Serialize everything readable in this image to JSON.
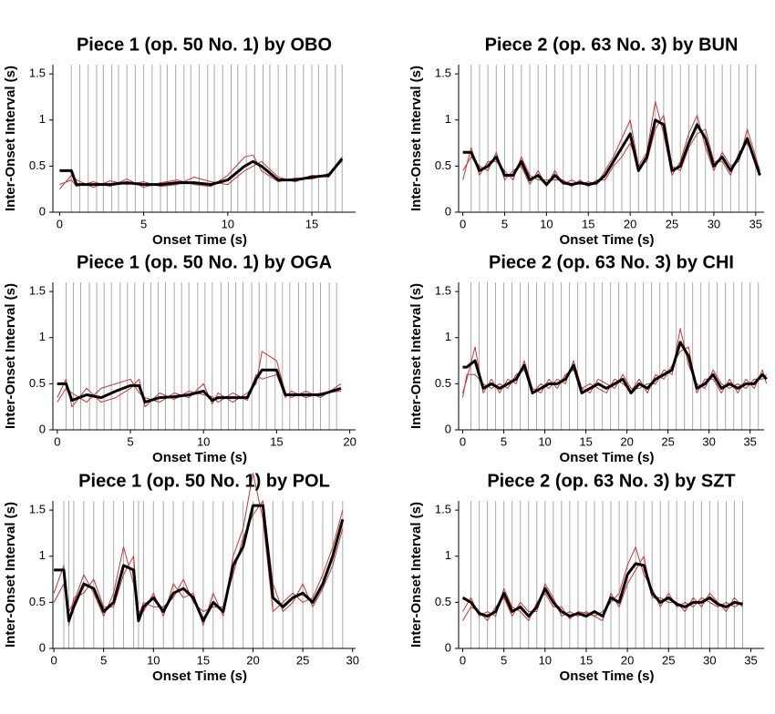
{
  "chart_data": [
    {
      "type": "line",
      "title": "Piece 1 (op. 50 No. 1) by OBO",
      "x_label": "Onset Time (s)",
      "y_label": "Inter-Onset Interval (s)",
      "xlim": [
        -0.4,
        17.6
      ],
      "ylim": [
        0,
        1.6
      ],
      "xticks": [
        0,
        5,
        10,
        15
      ],
      "yticks": [
        0,
        0.5,
        1,
        1.5
      ],
      "onset_color": "#aaaaaa",
      "onsets": [
        0.7,
        1.2,
        1.7,
        2.2,
        2.6,
        3.1,
        3.5,
        4,
        4.5,
        5,
        5.5,
        6,
        6.4,
        6.9,
        7.4,
        7.8,
        8.3,
        8.8,
        9.2,
        9.7,
        10.2,
        10.6,
        11.1,
        11.6,
        12.1,
        12.5,
        13,
        13.5,
        14,
        14.5,
        15,
        15.4,
        15.9,
        16.4,
        16.8
      ],
      "x": [
        0,
        0.7,
        1,
        2,
        3,
        4,
        5,
        6,
        7,
        8,
        9,
        10,
        11,
        11.5,
        12,
        13,
        14,
        15,
        16,
        16.8
      ],
      "series": [
        {
          "color": "#cc3333",
          "values": [
            0.3,
            0.35,
            0.28,
            0.33,
            0.28,
            0.36,
            0.27,
            0.32,
            0.35,
            0.3,
            0.28,
            0.4,
            0.6,
            0.62,
            0.45,
            0.33,
            0.37,
            0.36,
            0.42,
            0.55
          ]
        },
        {
          "color": "#cc3333",
          "values": [
            0.25,
            0.4,
            0.35,
            0.27,
            0.34,
            0.3,
            0.33,
            0.28,
            0.3,
            0.38,
            0.33,
            0.3,
            0.45,
            0.5,
            0.55,
            0.38,
            0.33,
            0.4,
            0.38,
            0.6
          ]
        },
        {
          "color": "#000000",
          "values": [
            0.45,
            0.45,
            0.3,
            0.3,
            0.3,
            0.32,
            0.3,
            0.3,
            0.32,
            0.32,
            0.3,
            0.35,
            0.5,
            0.55,
            0.5,
            0.35,
            0.35,
            0.38,
            0.4,
            0.58
          ]
        }
      ]
    },
    {
      "type": "line",
      "title": "Piece 2 (op. 63 No. 3) by BUN",
      "x_label": "Onset Time (s)",
      "y_label": "Inter-Onset Interval (s)",
      "xlim": [
        -0.5,
        36
      ],
      "ylim": [
        0,
        1.6
      ],
      "xticks": [
        0,
        5,
        10,
        15,
        20,
        25,
        30,
        35
      ],
      "yticks": [
        0,
        0.5,
        1,
        1.5
      ],
      "onset_color": "#aaaaaa",
      "onsets": [
        1,
        2,
        3,
        4,
        5,
        6,
        7,
        8,
        9,
        10,
        11,
        12,
        13,
        14,
        15,
        16,
        17,
        18,
        19,
        20,
        21,
        22,
        23,
        24,
        25,
        26,
        27,
        28,
        29,
        30,
        31,
        32,
        33,
        34,
        35
      ],
      "x": [
        0,
        1,
        2,
        3,
        4,
        5,
        6,
        7,
        8,
        9,
        10,
        11,
        12,
        13,
        14,
        15,
        16,
        17,
        18,
        19,
        20,
        21,
        22,
        23,
        24,
        25,
        26,
        27,
        28,
        29,
        30,
        31,
        32,
        33,
        34,
        35.5
      ],
      "series": [
        {
          "color": "#cc3333",
          "values": [
            0.45,
            0.6,
            0.5,
            0.45,
            0.65,
            0.35,
            0.45,
            0.5,
            0.3,
            0.45,
            0.28,
            0.45,
            0.3,
            0.35,
            0.3,
            0.33,
            0.3,
            0.45,
            0.6,
            0.8,
            1.0,
            0.5,
            0.65,
            1.2,
            0.85,
            0.4,
            0.55,
            0.85,
            1.05,
            0.7,
            0.45,
            0.65,
            0.5,
            0.55,
            0.9,
            0.45
          ]
        },
        {
          "color": "#cc3333",
          "values": [
            0.35,
            0.7,
            0.4,
            0.55,
            0.55,
            0.45,
            0.35,
            0.6,
            0.4,
            0.35,
            0.35,
            0.35,
            0.35,
            0.28,
            0.35,
            0.28,
            0.35,
            0.35,
            0.5,
            0.6,
            0.75,
            0.5,
            0.55,
            0.9,
            1.05,
            0.5,
            0.45,
            0.7,
            0.85,
            0.9,
            0.55,
            0.55,
            0.4,
            0.65,
            0.75,
            0.45
          ]
        },
        {
          "color": "#000000",
          "values": [
            0.65,
            0.65,
            0.45,
            0.5,
            0.6,
            0.4,
            0.4,
            0.55,
            0.35,
            0.4,
            0.3,
            0.4,
            0.32,
            0.3,
            0.32,
            0.3,
            0.32,
            0.4,
            0.55,
            0.7,
            0.85,
            0.45,
            0.6,
            1.0,
            0.95,
            0.45,
            0.5,
            0.75,
            0.95,
            0.8,
            0.5,
            0.6,
            0.45,
            0.6,
            0.8,
            0.4
          ]
        }
      ]
    },
    {
      "type": "line",
      "title": "Piece 1 (op. 50 No. 1) by OGA",
      "x_label": "Onset Time (s)",
      "y_label": "Inter-Onset Interval (s)",
      "xlim": [
        -0.3,
        20.4
      ],
      "ylim": [
        0,
        1.6
      ],
      "xticks": [
        0,
        5,
        10,
        15,
        20
      ],
      "yticks": [
        0,
        0.5,
        1,
        1.5
      ],
      "onset_color": "#aaaaaa",
      "onsets": [
        0.6,
        1.1,
        1.6,
        2.2,
        2.7,
        3.2,
        3.7,
        4.3,
        4.8,
        5.3,
        5.9,
        6.4,
        6.9,
        7.4,
        8,
        8.5,
        9,
        9.6,
        10.1,
        10.6,
        11.2,
        11.7,
        12.2,
        12.7,
        13.3,
        13.8,
        14.3,
        14.9,
        15.4,
        15.9,
        16.5,
        17,
        17.5,
        18,
        18.6,
        19.1
      ],
      "x": [
        0,
        0.6,
        1,
        2,
        3,
        4,
        5,
        5.6,
        6,
        7,
        8,
        9,
        10,
        10.6,
        11,
        12,
        13,
        13.6,
        14,
        15,
        15.6,
        16,
        17,
        18,
        19.4
      ],
      "series": [
        {
          "color": "#cc3333",
          "values": [
            0.3,
            0.45,
            0.4,
            0.3,
            0.45,
            0.5,
            0.55,
            0.4,
            0.35,
            0.3,
            0.4,
            0.35,
            0.5,
            0.28,
            0.4,
            0.3,
            0.4,
            0.5,
            0.85,
            0.75,
            0.4,
            0.35,
            0.42,
            0.35,
            0.5
          ]
        },
        {
          "color": "#cc3333",
          "values": [
            0.35,
            0.55,
            0.25,
            0.45,
            0.3,
            0.35,
            0.45,
            0.55,
            0.25,
            0.4,
            0.33,
            0.42,
            0.38,
            0.36,
            0.3,
            0.4,
            0.32,
            0.6,
            0.55,
            0.6,
            0.35,
            0.42,
            0.35,
            0.4,
            0.42
          ]
        },
        {
          "color": "#000000",
          "values": [
            0.5,
            0.5,
            0.32,
            0.38,
            0.35,
            0.42,
            0.48,
            0.48,
            0.3,
            0.35,
            0.36,
            0.38,
            0.42,
            0.32,
            0.35,
            0.35,
            0.35,
            0.55,
            0.65,
            0.65,
            0.38,
            0.38,
            0.38,
            0.38,
            0.45
          ]
        }
      ]
    },
    {
      "type": "line",
      "title": "Piece 2 (op. 63 No. 3) by CHI",
      "x_label": "Onset Time (s)",
      "y_label": "Inter-Onset Interval (s)",
      "xlim": [
        -0.5,
        36.7
      ],
      "ylim": [
        0,
        1.6
      ],
      "xticks": [
        0,
        5,
        10,
        15,
        20,
        25,
        30,
        35
      ],
      "yticks": [
        0,
        0.5,
        1,
        1.5
      ],
      "onset_color": "#aaaaaa",
      "onsets": [
        1,
        2,
        3,
        4,
        5,
        6,
        7,
        8,
        9,
        10,
        11,
        12,
        13,
        14,
        15,
        16,
        17,
        18,
        19,
        20,
        21,
        22,
        23,
        24,
        25,
        26,
        27,
        28,
        29,
        30,
        31,
        32,
        33,
        34,
        35,
        36
      ],
      "x": [
        0,
        0.5,
        1.5,
        2.5,
        3.5,
        4.5,
        5.5,
        6.5,
        7.5,
        8.5,
        9.5,
        10.5,
        11.5,
        12.5,
        13.5,
        14.5,
        15.5,
        16.5,
        17.5,
        18.5,
        19.5,
        20.5,
        21.5,
        22.5,
        23.5,
        24.5,
        25.5,
        26.5,
        27.5,
        28.5,
        29.5,
        30.5,
        31.5,
        32.5,
        33.5,
        34.5,
        35.5,
        36.5,
        37
      ],
      "series": [
        {
          "color": "#cc3333",
          "values": [
            0.4,
            0.55,
            0.9,
            0.4,
            0.55,
            0.4,
            0.55,
            0.5,
            0.75,
            0.45,
            0.4,
            0.55,
            0.45,
            0.6,
            0.65,
            0.45,
            0.4,
            0.55,
            0.5,
            0.45,
            0.6,
            0.45,
            0.45,
            0.5,
            0.5,
            0.65,
            0.6,
            1.1,
            0.7,
            0.5,
            0.45,
            0.65,
            0.5,
            0.45,
            0.5,
            0.45,
            0.55,
            0.55,
            0.6
          ]
        },
        {
          "color": "#cc3333",
          "values": [
            0.35,
            0.6,
            0.6,
            0.5,
            0.45,
            0.5,
            0.45,
            0.6,
            0.65,
            0.4,
            0.5,
            0.45,
            0.55,
            0.5,
            0.75,
            0.45,
            0.5,
            0.45,
            0.4,
            0.55,
            0.5,
            0.42,
            0.55,
            0.4,
            0.6,
            0.55,
            0.7,
            0.85,
            0.9,
            0.4,
            0.55,
            0.55,
            0.4,
            0.55,
            0.4,
            0.55,
            0.45,
            0.65,
            0.5
          ]
        },
        {
          "color": "#000000",
          "values": [
            0.68,
            0.68,
            0.75,
            0.45,
            0.5,
            0.45,
            0.5,
            0.55,
            0.7,
            0.4,
            0.45,
            0.5,
            0.5,
            0.55,
            0.7,
            0.4,
            0.45,
            0.5,
            0.45,
            0.5,
            0.55,
            0.4,
            0.5,
            0.45,
            0.55,
            0.6,
            0.65,
            0.95,
            0.8,
            0.45,
            0.5,
            0.6,
            0.45,
            0.5,
            0.45,
            0.5,
            0.5,
            0.6,
            0.55
          ]
        }
      ]
    },
    {
      "type": "line",
      "title": "Piece 1 (op. 50 No. 1) by POL",
      "x_label": "Onset Time (s)",
      "y_label": "Inter-Onset Interval (s)",
      "xlim": [
        -0.1,
        30.3
      ],
      "ylim": [
        0,
        1.6
      ],
      "xticks": [
        0,
        5,
        10,
        15,
        20,
        25,
        30
      ],
      "yticks": [
        0,
        0.5,
        1,
        1.5
      ],
      "onset_color": "#aaaaaa",
      "onsets": [
        1,
        1.5,
        2,
        3,
        4,
        5,
        6,
        7,
        8,
        8.5,
        9,
        10,
        11,
        12,
        13,
        14,
        15,
        16,
        17,
        18,
        19,
        20,
        21,
        22,
        23,
        24,
        25,
        26,
        27,
        28,
        29
      ],
      "x": [
        0,
        1,
        1.5,
        2,
        3,
        4,
        5,
        6,
        7,
        8,
        8.5,
        9,
        10,
        11,
        12,
        13,
        14,
        15,
        16,
        17,
        18,
        19,
        20,
        21,
        22,
        23,
        24,
        25,
        26,
        27,
        28,
        29
      ],
      "series": [
        {
          "color": "#cc3333",
          "values": [
            0.5,
            0.7,
            0.4,
            0.5,
            0.8,
            0.6,
            0.35,
            0.6,
            1.1,
            0.7,
            0.4,
            0.4,
            0.6,
            0.35,
            0.7,
            0.55,
            0.6,
            0.25,
            0.6,
            0.35,
            1.0,
            1.3,
            1.9,
            1.4,
            0.4,
            0.5,
            0.6,
            0.5,
            0.55,
            0.8,
            1.1,
            1.5
          ]
        },
        {
          "color": "#cc3333",
          "values": [
            0.6,
            0.9,
            0.25,
            0.55,
            0.6,
            0.75,
            0.45,
            0.45,
            0.8,
            1.0,
            0.35,
            0.5,
            0.45,
            0.45,
            0.55,
            0.75,
            0.5,
            0.4,
            0.45,
            0.45,
            0.8,
            1.2,
            1.45,
            1.6,
            0.7,
            0.4,
            0.5,
            0.7,
            0.45,
            0.65,
            0.9,
            1.3
          ]
        },
        {
          "color": "#000000",
          "values": [
            0.85,
            0.85,
            0.3,
            0.45,
            0.7,
            0.65,
            0.4,
            0.5,
            0.9,
            0.85,
            0.3,
            0.45,
            0.55,
            0.4,
            0.6,
            0.65,
            0.55,
            0.3,
            0.5,
            0.4,
            0.9,
            1.1,
            1.55,
            1.55,
            0.55,
            0.45,
            0.55,
            0.6,
            0.5,
            0.7,
            1.0,
            1.4
          ]
        }
      ]
    },
    {
      "type": "line",
      "title": "Piece 2 (op. 63 No. 3) by SZT",
      "x_label": "Onset Time (s)",
      "y_label": "Inter-Onset Interval (s)",
      "xlim": [
        -0.5,
        36.6
      ],
      "ylim": [
        0,
        1.6
      ],
      "xticks": [
        0,
        5,
        10,
        15,
        20,
        25,
        30,
        35
      ],
      "yticks": [
        0,
        0.5,
        1,
        1.5
      ],
      "onset_color": "#aaaaaa",
      "onsets": [
        1,
        2,
        3,
        4,
        5,
        6,
        7,
        8,
        9,
        10,
        11,
        12,
        13,
        14,
        15,
        16,
        17,
        18,
        19,
        20,
        21,
        22,
        23,
        24,
        25,
        26,
        27,
        28,
        29,
        30,
        31,
        32,
        33,
        34
      ],
      "x": [
        0,
        1,
        2,
        3,
        4,
        5,
        6,
        7,
        8,
        9,
        10,
        11,
        12,
        13,
        14,
        15,
        16,
        17,
        18,
        19,
        20,
        21,
        22,
        23,
        24,
        25,
        26,
        27,
        28,
        29,
        30,
        31,
        32,
        33,
        34
      ],
      "series": [
        {
          "color": "#cc3333",
          "values": [
            0.4,
            0.55,
            0.35,
            0.4,
            0.35,
            0.65,
            0.45,
            0.4,
            0.3,
            0.5,
            0.6,
            0.45,
            0.45,
            0.32,
            0.4,
            0.38,
            0.35,
            0.4,
            0.5,
            0.6,
            0.9,
            1.1,
            0.8,
            0.65,
            0.45,
            0.6,
            0.45,
            0.5,
            0.45,
            0.55,
            0.5,
            0.45,
            0.5,
            0.45,
            0.5
          ]
        },
        {
          "color": "#cc3333",
          "values": [
            0.3,
            0.45,
            0.4,
            0.3,
            0.45,
            0.55,
            0.35,
            0.5,
            0.4,
            0.4,
            0.7,
            0.55,
            0.35,
            0.4,
            0.35,
            0.4,
            0.35,
            0.3,
            0.6,
            0.45,
            0.7,
            0.85,
            1.0,
            0.55,
            0.55,
            0.5,
            0.5,
            0.4,
            0.55,
            0.45,
            0.6,
            0.5,
            0.4,
            0.55,
            0.45
          ]
        },
        {
          "color": "#000000",
          "values": [
            0.55,
            0.5,
            0.38,
            0.35,
            0.4,
            0.6,
            0.4,
            0.45,
            0.35,
            0.45,
            0.65,
            0.5,
            0.4,
            0.35,
            0.38,
            0.35,
            0.4,
            0.35,
            0.55,
            0.5,
            0.8,
            0.92,
            0.9,
            0.6,
            0.5,
            0.55,
            0.48,
            0.45,
            0.5,
            0.5,
            0.55,
            0.48,
            0.45,
            0.5,
            0.48
          ]
        }
      ]
    }
  ]
}
